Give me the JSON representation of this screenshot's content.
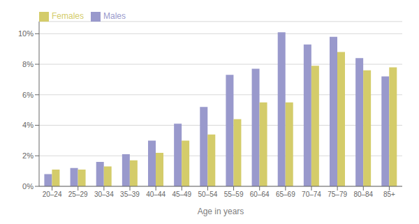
{
  "chart_data": {
    "type": "bar",
    "xlabel": "Age in years",
    "categories": [
      "20–24",
      "25–29",
      "30–34",
      "35–39",
      "40–44",
      "45–49",
      "50–54",
      "55–59",
      "60–64",
      "65–69",
      "70–74",
      "75–79",
      "80–84",
      "85+"
    ],
    "series": [
      {
        "name": "Males",
        "color": "#9999cc",
        "values": [
          0.8,
          1.2,
          1.6,
          2.1,
          3.0,
          4.1,
          5.2,
          7.3,
          7.7,
          10.1,
          9.3,
          9.8,
          8.4,
          7.2
        ]
      },
      {
        "name": "Females",
        "color": "#d4cc6a",
        "values": [
          1.1,
          1.1,
          1.3,
          1.7,
          2.2,
          3.0,
          3.4,
          4.4,
          5.5,
          5.5,
          7.9,
          8.8,
          7.6,
          7.8
        ]
      }
    ],
    "ylim": [
      0,
      10.8
    ],
    "yticks": [
      {
        "value": 0,
        "label": "0%"
      },
      {
        "value": 2,
        "label": "2%"
      },
      {
        "value": 4,
        "label": "4%"
      },
      {
        "value": 6,
        "label": "6%"
      },
      {
        "value": 8,
        "label": "8%"
      },
      {
        "value": 10,
        "label": "10%"
      }
    ],
    "grid": true,
    "legend": "upper left"
  }
}
